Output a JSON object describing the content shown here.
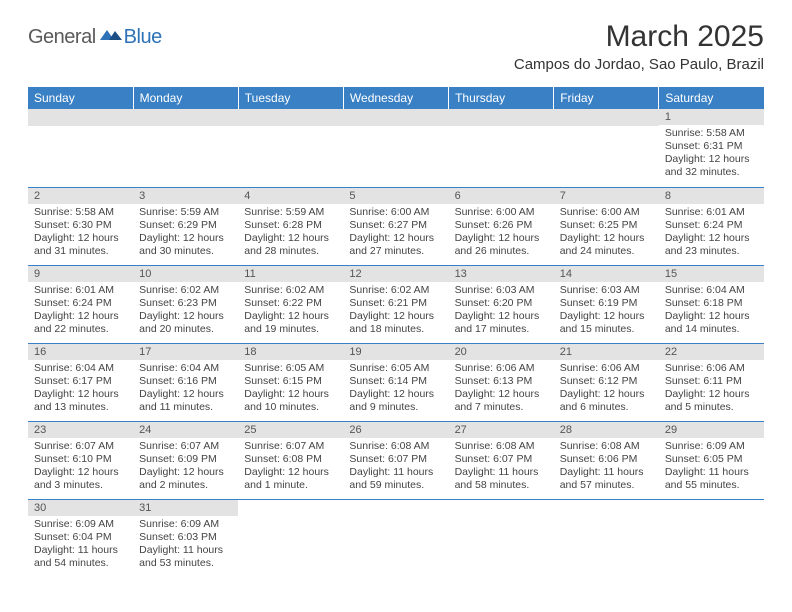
{
  "logo": {
    "general": "General",
    "blue": "Blue"
  },
  "title": "March 2025",
  "location": "Campos do Jordao, Sao Paulo, Brazil",
  "header_bg": "#3a80c4",
  "header_text": "#ffffff",
  "daynum_bg": "#e3e3e3",
  "cell_border": "#3a80c4",
  "days": [
    "Sunday",
    "Monday",
    "Tuesday",
    "Wednesday",
    "Thursday",
    "Friday",
    "Saturday"
  ],
  "weeks": [
    [
      null,
      null,
      null,
      null,
      null,
      null,
      {
        "n": "1",
        "r": "5:58 AM",
        "s": "6:31 PM",
        "d": "12 hours and 32 minutes."
      }
    ],
    [
      {
        "n": "2",
        "r": "5:58 AM",
        "s": "6:30 PM",
        "d": "12 hours and 31 minutes."
      },
      {
        "n": "3",
        "r": "5:59 AM",
        "s": "6:29 PM",
        "d": "12 hours and 30 minutes."
      },
      {
        "n": "4",
        "r": "5:59 AM",
        "s": "6:28 PM",
        "d": "12 hours and 28 minutes."
      },
      {
        "n": "5",
        "r": "6:00 AM",
        "s": "6:27 PM",
        "d": "12 hours and 27 minutes."
      },
      {
        "n": "6",
        "r": "6:00 AM",
        "s": "6:26 PM",
        "d": "12 hours and 26 minutes."
      },
      {
        "n": "7",
        "r": "6:00 AM",
        "s": "6:25 PM",
        "d": "12 hours and 24 minutes."
      },
      {
        "n": "8",
        "r": "6:01 AM",
        "s": "6:24 PM",
        "d": "12 hours and 23 minutes."
      }
    ],
    [
      {
        "n": "9",
        "r": "6:01 AM",
        "s": "6:24 PM",
        "d": "12 hours and 22 minutes."
      },
      {
        "n": "10",
        "r": "6:02 AM",
        "s": "6:23 PM",
        "d": "12 hours and 20 minutes."
      },
      {
        "n": "11",
        "r": "6:02 AM",
        "s": "6:22 PM",
        "d": "12 hours and 19 minutes."
      },
      {
        "n": "12",
        "r": "6:02 AM",
        "s": "6:21 PM",
        "d": "12 hours and 18 minutes."
      },
      {
        "n": "13",
        "r": "6:03 AM",
        "s": "6:20 PM",
        "d": "12 hours and 17 minutes."
      },
      {
        "n": "14",
        "r": "6:03 AM",
        "s": "6:19 PM",
        "d": "12 hours and 15 minutes."
      },
      {
        "n": "15",
        "r": "6:04 AM",
        "s": "6:18 PM",
        "d": "12 hours and 14 minutes."
      }
    ],
    [
      {
        "n": "16",
        "r": "6:04 AM",
        "s": "6:17 PM",
        "d": "12 hours and 13 minutes."
      },
      {
        "n": "17",
        "r": "6:04 AM",
        "s": "6:16 PM",
        "d": "12 hours and 11 minutes."
      },
      {
        "n": "18",
        "r": "6:05 AM",
        "s": "6:15 PM",
        "d": "12 hours and 10 minutes."
      },
      {
        "n": "19",
        "r": "6:05 AM",
        "s": "6:14 PM",
        "d": "12 hours and 9 minutes."
      },
      {
        "n": "20",
        "r": "6:06 AM",
        "s": "6:13 PM",
        "d": "12 hours and 7 minutes."
      },
      {
        "n": "21",
        "r": "6:06 AM",
        "s": "6:12 PM",
        "d": "12 hours and 6 minutes."
      },
      {
        "n": "22",
        "r": "6:06 AM",
        "s": "6:11 PM",
        "d": "12 hours and 5 minutes."
      }
    ],
    [
      {
        "n": "23",
        "r": "6:07 AM",
        "s": "6:10 PM",
        "d": "12 hours and 3 minutes."
      },
      {
        "n": "24",
        "r": "6:07 AM",
        "s": "6:09 PM",
        "d": "12 hours and 2 minutes."
      },
      {
        "n": "25",
        "r": "6:07 AM",
        "s": "6:08 PM",
        "d": "12 hours and 1 minute."
      },
      {
        "n": "26",
        "r": "6:08 AM",
        "s": "6:07 PM",
        "d": "11 hours and 59 minutes."
      },
      {
        "n": "27",
        "r": "6:08 AM",
        "s": "6:07 PM",
        "d": "11 hours and 58 minutes."
      },
      {
        "n": "28",
        "r": "6:08 AM",
        "s": "6:06 PM",
        "d": "11 hours and 57 minutes."
      },
      {
        "n": "29",
        "r": "6:09 AM",
        "s": "6:05 PM",
        "d": "11 hours and 55 minutes."
      }
    ],
    [
      {
        "n": "30",
        "r": "6:09 AM",
        "s": "6:04 PM",
        "d": "11 hours and 54 minutes."
      },
      {
        "n": "31",
        "r": "6:09 AM",
        "s": "6:03 PM",
        "d": "11 hours and 53 minutes."
      },
      null,
      null,
      null,
      null,
      null
    ]
  ],
  "labels": {
    "sunrise": "Sunrise: ",
    "sunset": "Sunset: ",
    "daylight": "Daylight: "
  }
}
